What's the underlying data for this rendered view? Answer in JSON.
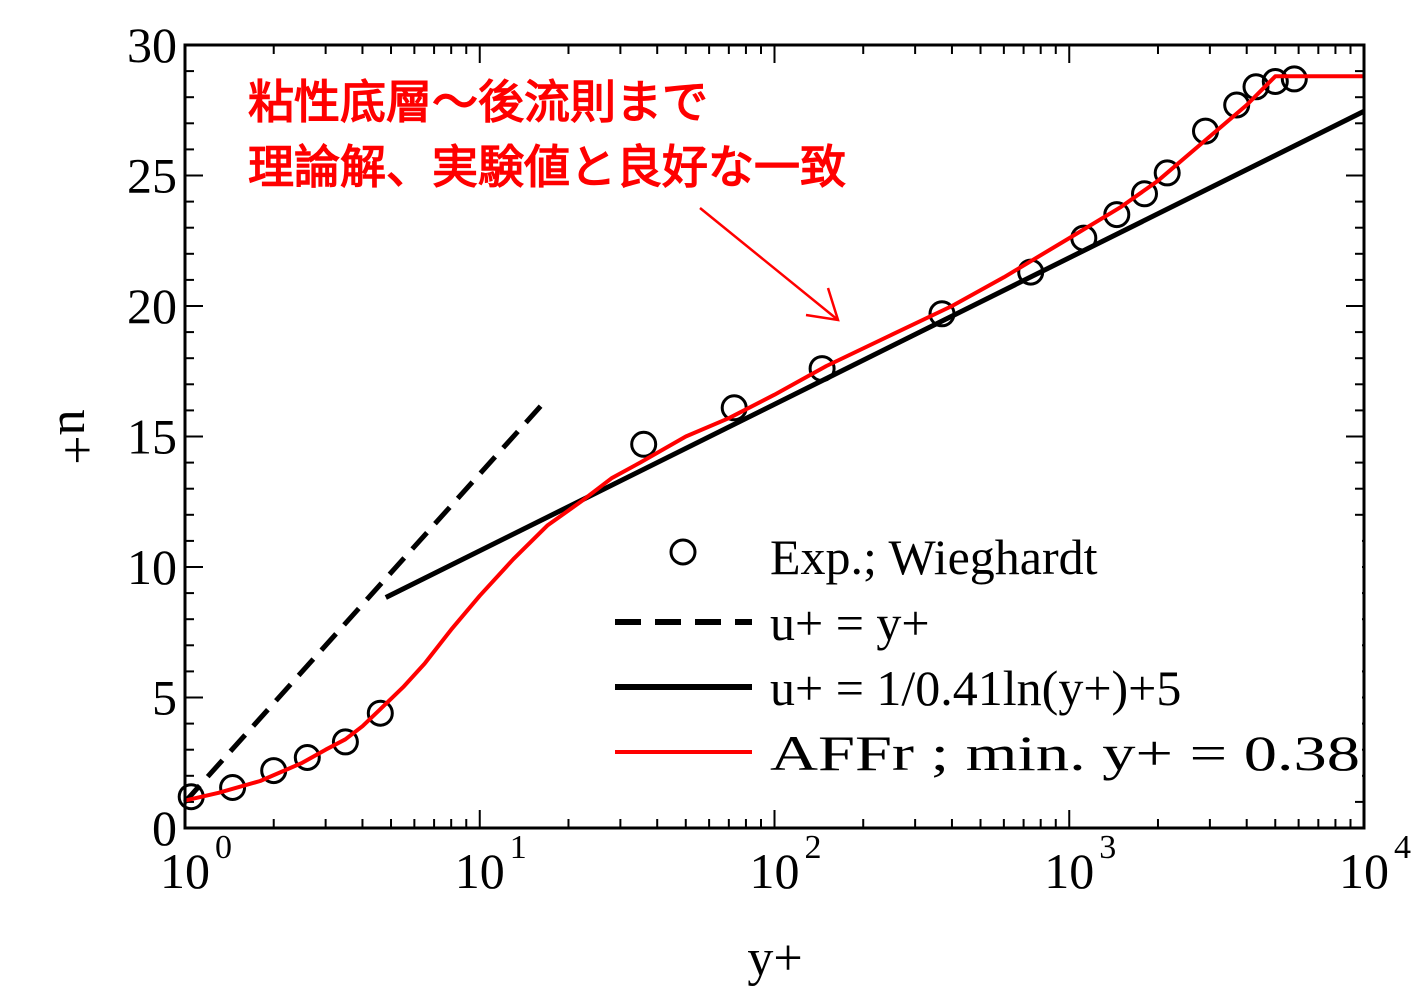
{
  "chart_data": {
    "type": "line",
    "x_scale": "log",
    "xlabel": "y+",
    "ylabel": "u+",
    "xlim": [
      1,
      10000
    ],
    "ylim": [
      0,
      30
    ],
    "x_ticks": [
      {
        "value": 1,
        "base": "10",
        "exp": "0"
      },
      {
        "value": 10,
        "base": "10",
        "exp": "1"
      },
      {
        "value": 100,
        "base": "10",
        "exp": "2"
      },
      {
        "value": 1000,
        "base": "10",
        "exp": "3"
      },
      {
        "value": 10000,
        "base": "10",
        "exp": "4"
      }
    ],
    "y_ticks": [
      0,
      5,
      10,
      15,
      20,
      25,
      30
    ],
    "y_tick_labels": [
      "0",
      "5",
      "10",
      "15",
      "20",
      "25",
      "30"
    ],
    "annotation": {
      "lines": [
        "粘性底層～後流則まで",
        "理論解、実験値と良好な一致"
      ],
      "color": "#ff0000",
      "arrow_to": {
        "x": 180,
        "y": 19.3
      }
    },
    "legend": [
      {
        "label": "Exp.; Wieghardt",
        "style": "circle",
        "series": "exp"
      },
      {
        "label": "u+ = y+",
        "style": "dashed",
        "series": "viscous"
      },
      {
        "label": "u+ = 1/0.41ln(y+)+5",
        "style": "solid-black",
        "series": "log"
      },
      {
        "label": "AFFr ; min. y+ = 0.38",
        "style": "solid-red",
        "series": "affr"
      }
    ],
    "series": [
      {
        "id": "exp",
        "name": "Exp.; Wieghardt",
        "kind": "scatter",
        "color": "#000000",
        "points": [
          [
            1.05,
            1.2
          ],
          [
            1.45,
            1.55
          ],
          [
            2.0,
            2.2
          ],
          [
            2.6,
            2.7
          ],
          [
            3.5,
            3.3
          ],
          [
            4.6,
            4.4
          ],
          [
            36,
            14.7
          ],
          [
            73,
            16.1
          ],
          [
            145,
            17.6
          ],
          [
            370,
            19.7
          ],
          [
            740,
            21.3
          ],
          [
            1120,
            22.6
          ],
          [
            1450,
            23.5
          ],
          [
            1800,
            24.3
          ],
          [
            2150,
            25.1
          ],
          [
            2900,
            26.7
          ],
          [
            3700,
            27.7
          ],
          [
            4300,
            28.4
          ],
          [
            5000,
            28.6
          ],
          [
            5800,
            28.7
          ]
        ]
      },
      {
        "id": "viscous",
        "name": "u+ = y+",
        "kind": "line",
        "color": "#000000",
        "dash": true,
        "points": [
          [
            1,
            1
          ],
          [
            16.2,
            16.2
          ]
        ]
      },
      {
        "id": "log",
        "name": "u+ = 1/0.41ln(y+)+5",
        "kind": "line",
        "color": "#000000",
        "points": [
          [
            4.8,
            8.83
          ],
          [
            10000,
            27.46
          ]
        ]
      },
      {
        "id": "affr",
        "name": "AFFr ; min. y+ = 0.38",
        "kind": "line",
        "color": "#ff0000",
        "points": [
          [
            1.0,
            1.05
          ],
          [
            1.3,
            1.35
          ],
          [
            1.8,
            1.8
          ],
          [
            2.5,
            2.5
          ],
          [
            3.0,
            3.0
          ],
          [
            3.5,
            3.4
          ],
          [
            4.0,
            3.9
          ],
          [
            4.6,
            4.55
          ],
          [
            5.5,
            5.4
          ],
          [
            6.5,
            6.3
          ],
          [
            8.0,
            7.6
          ],
          [
            10,
            8.9
          ],
          [
            13,
            10.3
          ],
          [
            17,
            11.6
          ],
          [
            22,
            12.5
          ],
          [
            28,
            13.4
          ],
          [
            35,
            14.0
          ],
          [
            50,
            15.0
          ],
          [
            70,
            15.7
          ],
          [
            100,
            16.6
          ],
          [
            150,
            17.7
          ],
          [
            250,
            18.9
          ],
          [
            400,
            20.0
          ],
          [
            600,
            21.1
          ],
          [
            1000,
            22.6
          ],
          [
            1500,
            23.8
          ],
          [
            2000,
            24.8
          ],
          [
            3000,
            26.5
          ],
          [
            4000,
            27.7
          ],
          [
            5000,
            28.8
          ],
          [
            10000,
            28.8
          ]
        ]
      }
    ]
  }
}
